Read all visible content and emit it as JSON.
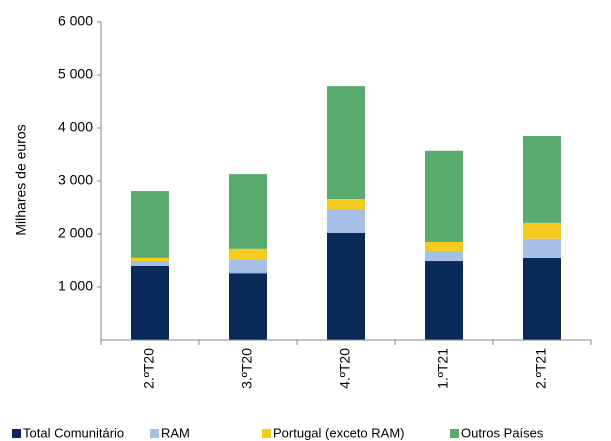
{
  "chart_data": {
    "type": "stacked_bar",
    "y_label": "Milhares de euros",
    "categories": [
      "2.ºT20",
      "3.ºT20",
      "4.ºT20",
      "1.ºT21",
      "2.ºT21"
    ],
    "series": [
      {
        "name": "Total Comunitário",
        "color": "#0a2b5a",
        "values": [
          1400,
          1260,
          2020,
          1490,
          1550
        ]
      },
      {
        "name": "RAM",
        "color": "#a6bfe6",
        "values": [
          90,
          250,
          450,
          190,
          360
        ]
      },
      {
        "name": "Portugal (exceto RAM)",
        "color": "#f5cc1e",
        "values": [
          60,
          210,
          190,
          170,
          300
        ]
      },
      {
        "name": "Outros Países",
        "color": "#5aab6e",
        "values": [
          1260,
          1410,
          2130,
          1720,
          1640
        ]
      }
    ],
    "ylim": [
      0,
      6000
    ],
    "yticks": [
      {
        "value": 1000,
        "label": "1 000"
      },
      {
        "value": 2000,
        "label": "2 000"
      },
      {
        "value": 3000,
        "label": "3 000"
      },
      {
        "value": 4000,
        "label": "4 000"
      },
      {
        "value": 5000,
        "label": "5 000"
      },
      {
        "value": 6000,
        "label": "6 000"
      }
    ]
  }
}
